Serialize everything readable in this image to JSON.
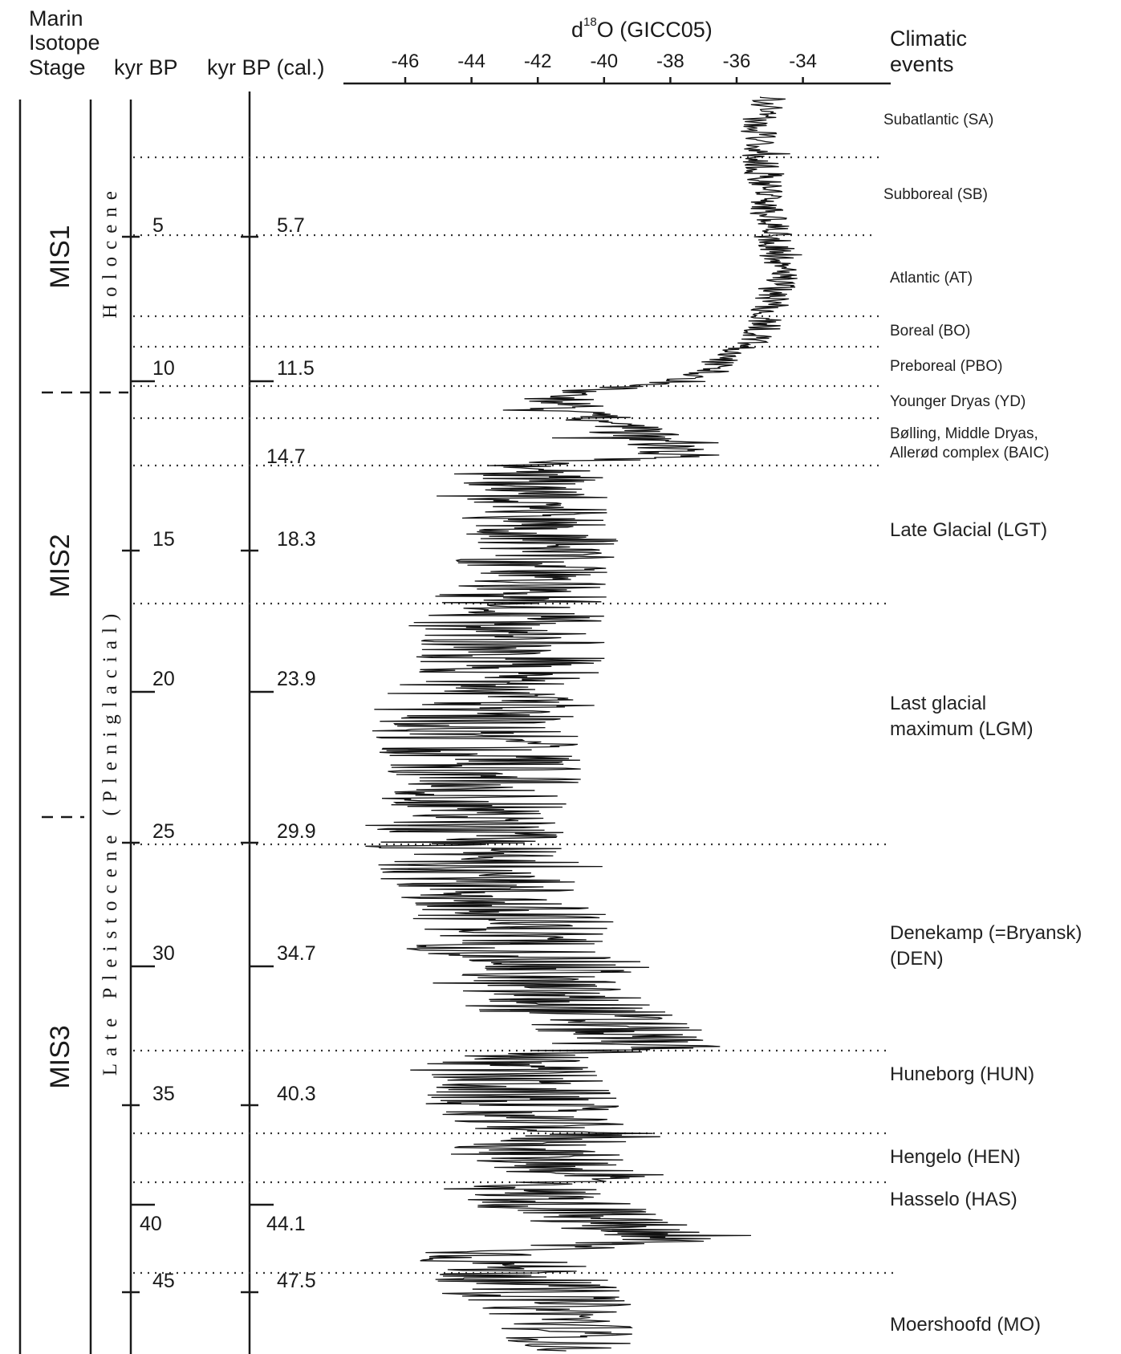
{
  "header": {
    "mis_title_lines": [
      "Marin",
      "Isotope",
      "Stage"
    ],
    "kyr_bp": "kyr BP",
    "kyr_bp_cal": "kyr BP (cal.)",
    "d18o_prefix": "d",
    "d18o_sup": "18",
    "d18o_suffix": "O (GICC05)",
    "events_title_lines": [
      "Climatic",
      "events"
    ]
  },
  "mis_stages": [
    {
      "label": "MIS1"
    },
    {
      "label": "MIS2"
    },
    {
      "label": "MIS3"
    }
  ],
  "epochs": {
    "holocene": "Holocene",
    "pleistocene": "Late Pleistocene (Pleniglacial)"
  },
  "age_ticks": [
    {
      "kyr": "5",
      "cal": "5.7"
    },
    {
      "kyr": "10",
      "cal": "11.5"
    },
    {
      "kyr": "",
      "cal": "14.7"
    },
    {
      "kyr": "15",
      "cal": "18.3"
    },
    {
      "kyr": "20",
      "cal": "23.9"
    },
    {
      "kyr": "25",
      "cal": "29.9"
    },
    {
      "kyr": "30",
      "cal": "34.7"
    },
    {
      "kyr": "35",
      "cal": "40.3"
    },
    {
      "kyr": "40",
      "cal": "44.1"
    },
    {
      "kyr": "45",
      "cal": "47.5"
    }
  ],
  "events": [
    {
      "lines": [
        "Subatlantic (SA)"
      ]
    },
    {
      "lines": [
        "Subboreal (SB)"
      ]
    },
    {
      "lines": [
        "Atlantic (AT)"
      ]
    },
    {
      "lines": [
        "Boreal (BO)"
      ]
    },
    {
      "lines": [
        "Preboreal (PBO)"
      ]
    },
    {
      "lines": [
        "Younger Dryas (YD)"
      ]
    },
    {
      "lines": [
        "Bølling, Middle Dryas,",
        "Allerød complex (BAIC)"
      ]
    },
    {
      "lines": [
        "Late Glacial (LGT)"
      ]
    },
    {
      "lines": [
        "Last glacial",
        "maximum (LGM)"
      ]
    },
    {
      "lines": [
        "Denekamp (=Bryansk)",
        "(DEN)"
      ]
    },
    {
      "lines": [
        "Huneborg (HUN)"
      ]
    },
    {
      "lines": [
        "Hengelo (HEN)"
      ]
    },
    {
      "lines": [
        "Hasselo (HAS)"
      ]
    },
    {
      "lines": [
        "Moershoofd (MO)"
      ]
    }
  ],
  "chart_data": {
    "type": "line",
    "title": "d18O (GICC05)",
    "xlabel": "d18O (GICC05)",
    "ylabel": "kyr BP (cal.)",
    "x_ticks": [
      -46,
      -44,
      -42,
      -40,
      -38,
      -36,
      -34
    ],
    "xlim": [
      -48,
      -32.2
    ],
    "ylim_cal_kyr": [
      0,
      49.5
    ],
    "orientation": "vertical, time increasing downward",
    "grid": false,
    "series": [
      {
        "cal_kyr_bp": [
          0.2,
          1.0,
          2.0,
          3.0,
          4.0,
          5.0,
          5.7,
          6.5,
          7.0,
          8.0,
          9.0,
          10.0,
          10.5,
          11.0,
          11.5,
          11.7,
          12.0,
          12.3,
          12.6,
          12.9,
          13.2,
          13.6,
          14.0,
          14.4,
          14.7,
          15.0,
          15.5,
          16.0,
          17.0,
          18.0,
          19.0,
          20.0,
          21.0,
          22.0,
          23.0,
          23.9,
          24.5,
          25.0,
          26.0,
          27.0,
          28.0,
          28.5,
          29.0,
          29.9,
          30.5,
          31.0,
          31.5,
          32.0,
          32.5,
          33.0,
          33.5,
          34.0,
          34.7,
          35.0,
          35.5,
          36.0,
          36.5,
          37.0,
          37.5,
          38.0,
          38.5,
          39.0,
          39.5,
          40.3,
          40.8,
          41.2,
          41.5,
          42.0,
          42.5,
          43.0,
          43.5,
          44.1,
          44.6,
          45.0,
          45.5,
          46.0,
          46.5,
          47.0,
          47.5,
          48.0,
          48.5,
          49.0,
          49.5
        ],
        "d18o": [
          -35.0,
          -35.3,
          -35.4,
          -35.2,
          -35.0,
          -35.0,
          -34.9,
          -34.8,
          -34.6,
          -34.9,
          -35.1,
          -35.5,
          -36.2,
          -36.8,
          -37.5,
          -39.5,
          -41.5,
          -41.5,
          -41.0,
          -40.5,
          -39.5,
          -39.0,
          -38.5,
          -37.5,
          -42.0,
          -42.5,
          -42.0,
          -42.0,
          -42.0,
          -41.8,
          -42.3,
          -42.5,
          -43.0,
          -42.8,
          -42.8,
          -43.5,
          -44.0,
          -44.0,
          -43.8,
          -43.5,
          -44.0,
          -44.0,
          -44.2,
          -44.5,
          -44.0,
          -43.5,
          -43.8,
          -43.5,
          -43.5,
          -42.5,
          -42.5,
          -43.0,
          -41.5,
          -42.0,
          -42.5,
          -41.5,
          -41.0,
          -40.0,
          -39.5,
          -39.0,
          -43.5,
          -43.0,
          -42.8,
          -42.5,
          -43.0,
          -41.5,
          -40.5,
          -42.5,
          -41.5,
          -40.0,
          -42.5,
          -41.5,
          -40.5,
          -39.5,
          -38.5,
          -43.5,
          -43.0,
          -42.5,
          -42.0,
          -41.5,
          -41.0,
          -41.0,
          -41.0
        ],
        "variability_band": [
          0.6,
          0.6,
          0.6,
          0.6,
          0.6,
          0.6,
          0.6,
          0.6,
          0.6,
          0.6,
          0.6,
          0.6,
          0.7,
          0.7,
          0.8,
          1.2,
          1.4,
          1.3,
          1.3,
          1.3,
          1.3,
          1.3,
          1.3,
          1.5,
          2.0,
          2.2,
          2.3,
          2.3,
          2.3,
          2.4,
          2.4,
          2.6,
          3.0,
          3.0,
          3.0,
          3.0,
          3.0,
          3.2,
          3.2,
          3.0,
          3.0,
          3.0,
          3.2,
          3.2,
          3.2,
          3.2,
          3.0,
          3.2,
          3.2,
          3.0,
          3.0,
          3.0,
          3.0,
          3.0,
          3.0,
          3.0,
          3.0,
          2.8,
          2.6,
          2.6,
          3.0,
          3.0,
          3.0,
          3.0,
          3.0,
          2.6,
          2.6,
          2.6,
          2.6,
          2.6,
          2.6,
          2.6,
          2.4,
          2.4,
          2.4,
          2.6,
          2.6,
          2.6,
          2.6,
          2.4,
          2.2,
          2.0,
          1.8
        ]
      }
    ]
  }
}
